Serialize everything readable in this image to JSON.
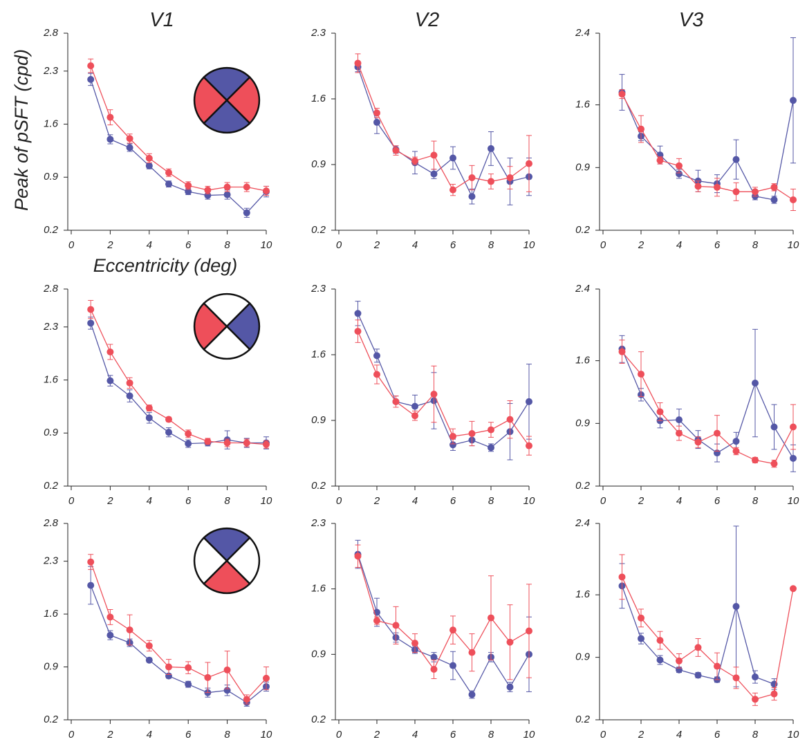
{
  "chart_data": [
    {
      "type": "line",
      "title": "V1",
      "ylabel": "Peak of pSFT (cpd)",
      "xlabel": "Eccentricity (deg)",
      "x": [
        1,
        2,
        3,
        4,
        5,
        6,
        7,
        8,
        9,
        10
      ],
      "xlim": [
        0,
        10
      ],
      "xticks": [
        0,
        2,
        4,
        6,
        8,
        10
      ],
      "ylim": [
        0.2,
        2.8
      ],
      "yticks": [
        0.2,
        0.9,
        1.6,
        2.3,
        2.8
      ],
      "series": [
        {
          "color": "#5457a6",
          "values": [
            2.19,
            1.4,
            1.29,
            1.05,
            0.81,
            0.71,
            0.66,
            0.67,
            0.43,
            0.71
          ],
          "errors": [
            0.08,
            0.06,
            0.05,
            0.04,
            0.04,
            0.04,
            0.05,
            0.06,
            0.06,
            0.07
          ]
        },
        {
          "color": "#ee4f5a",
          "values": [
            2.37,
            1.69,
            1.41,
            1.15,
            0.96,
            0.79,
            0.73,
            0.77,
            0.77,
            0.72
          ],
          "errors": [
            0.09,
            0.1,
            0.06,
            0.06,
            0.05,
            0.05,
            0.05,
            0.06,
            0.06,
            0.06
          ]
        }
      ]
    },
    {
      "type": "line",
      "title": "V2",
      "x": [
        1,
        2,
        3,
        4,
        5,
        6,
        7,
        8,
        9,
        10
      ],
      "xlim": [
        0,
        10
      ],
      "xticks": [
        0,
        2,
        4,
        6,
        8,
        10
      ],
      "ylim": [
        0.2,
        2.3
      ],
      "yticks": [
        0.2,
        0.9,
        1.6,
        2.3
      ],
      "series": [
        {
          "color": "#5457a6",
          "values": [
            1.94,
            1.35,
            1.06,
            0.92,
            0.8,
            0.97,
            0.56,
            1.07,
            0.72,
            0.77
          ],
          "errors": [
            0.05,
            0.12,
            0.04,
            0.12,
            0.05,
            0.12,
            0.08,
            0.18,
            0.25,
            0.2
          ]
        },
        {
          "color": "#ee4f5a",
          "values": [
            1.98,
            1.45,
            1.05,
            0.94,
            1.0,
            0.63,
            0.76,
            0.72,
            0.76,
            0.91
          ],
          "errors": [
            0.1,
            0.05,
            0.05,
            0.04,
            0.15,
            0.06,
            0.13,
            0.08,
            0.12,
            0.3
          ]
        }
      ]
    },
    {
      "type": "line",
      "title": "V3",
      "x": [
        1,
        2,
        3,
        4,
        5,
        6,
        7,
        8,
        9,
        10
      ],
      "xlim": [
        0,
        10
      ],
      "xticks": [
        0,
        2,
        4,
        6,
        8,
        10
      ],
      "ylim": [
        0.2,
        2.4
      ],
      "yticks": [
        0.2,
        0.9,
        1.6,
        2.4
      ],
      "series": [
        {
          "color": "#5457a6",
          "values": [
            1.74,
            1.25,
            1.04,
            0.83,
            0.75,
            0.72,
            0.99,
            0.58,
            0.54,
            1.65
          ],
          "errors": [
            0.2,
            0.05,
            0.1,
            0.05,
            0.12,
            0.1,
            0.22,
            0.04,
            0.04,
            0.7
          ]
        },
        {
          "color": "#ee4f5a",
          "values": [
            1.72,
            1.33,
            0.98,
            0.92,
            0.69,
            0.68,
            0.63,
            0.63,
            0.68,
            0.54
          ],
          "errors": [
            0.05,
            0.15,
            0.04,
            0.08,
            0.06,
            0.1,
            0.1,
            0.05,
            0.04,
            0.12
          ]
        }
      ]
    },
    {
      "type": "line",
      "x": [
        1,
        2,
        3,
        4,
        5,
        6,
        7,
        8,
        9,
        10
      ],
      "xlim": [
        0,
        10
      ],
      "xticks": [
        0,
        2,
        4,
        6,
        8,
        10
      ],
      "ylim": [
        0.2,
        2.8
      ],
      "yticks": [
        0.2,
        0.9,
        1.6,
        2.3,
        2.8
      ],
      "series": [
        {
          "color": "#5457a6",
          "values": [
            2.35,
            1.59,
            1.39,
            1.1,
            0.91,
            0.76,
            0.77,
            0.81,
            0.77,
            0.77
          ],
          "errors": [
            0.08,
            0.07,
            0.08,
            0.07,
            0.06,
            0.05,
            0.04,
            0.12,
            0.06,
            0.08
          ]
        },
        {
          "color": "#ee4f5a",
          "values": [
            2.53,
            1.97,
            1.56,
            1.23,
            1.08,
            0.89,
            0.79,
            0.77,
            0.77,
            0.75
          ],
          "errors": [
            0.12,
            0.1,
            0.07,
            0.04,
            0.03,
            0.05,
            0.04,
            0.05,
            0.05,
            0.05
          ]
        }
      ]
    },
    {
      "type": "line",
      "x": [
        1,
        2,
        3,
        4,
        5,
        6,
        7,
        8,
        9,
        10
      ],
      "xlim": [
        0,
        10
      ],
      "xticks": [
        0,
        2,
        4,
        6,
        8,
        10
      ],
      "ylim": [
        0.2,
        2.3
      ],
      "yticks": [
        0.2,
        0.9,
        1.6,
        2.3
      ],
      "series": [
        {
          "color": "#5457a6",
          "values": [
            2.04,
            1.59,
            1.1,
            1.05,
            1.11,
            0.64,
            0.69,
            0.61,
            0.78,
            1.1
          ],
          "errors": [
            0.13,
            0.07,
            0.06,
            0.12,
            0.3,
            0.06,
            0.06,
            0.04,
            0.3,
            0.4
          ]
        },
        {
          "color": "#ee4f5a",
          "values": [
            1.85,
            1.39,
            1.1,
            0.95,
            1.18,
            0.73,
            0.76,
            0.8,
            0.91,
            0.63
          ],
          "errors": [
            0.12,
            0.1,
            0.06,
            0.05,
            0.3,
            0.08,
            0.13,
            0.08,
            0.2,
            0.1
          ]
        }
      ]
    },
    {
      "type": "line",
      "x": [
        1,
        2,
        3,
        4,
        5,
        6,
        7,
        8,
        9,
        10
      ],
      "xlim": [
        0,
        10
      ],
      "xticks": [
        0,
        2,
        4,
        6,
        8,
        10
      ],
      "ylim": [
        0.2,
        2.4
      ],
      "yticks": [
        0.2,
        0.9,
        1.6,
        2.4
      ],
      "series": [
        {
          "color": "#5457a6",
          "values": [
            1.73,
            1.22,
            0.93,
            0.94,
            0.72,
            0.57,
            0.7,
            1.35,
            0.86,
            0.51
          ],
          "errors": [
            0.15,
            0.07,
            0.08,
            0.12,
            0.1,
            0.1,
            0.1,
            0.6,
            0.25,
            0.15
          ]
        },
        {
          "color": "#ee4f5a",
          "values": [
            1.7,
            1.45,
            1.03,
            0.79,
            0.69,
            0.79,
            0.59,
            0.49,
            0.45,
            0.86
          ],
          "errors": [
            0.13,
            0.25,
            0.1,
            0.08,
            0.06,
            0.2,
            0.04,
            0.03,
            0.04,
            0.25
          ]
        }
      ]
    },
    {
      "type": "line",
      "x": [
        1,
        2,
        3,
        4,
        5,
        6,
        7,
        8,
        9,
        10
      ],
      "xlim": [
        0,
        10
      ],
      "xticks": [
        0,
        2,
        4,
        6,
        8,
        10
      ],
      "ylim": [
        0.2,
        2.8
      ],
      "yticks": [
        0.2,
        0.9,
        1.6,
        2.3,
        2.8
      ],
      "series": [
        {
          "color": "#5457a6",
          "values": [
            1.98,
            1.32,
            1.22,
            0.99,
            0.78,
            0.67,
            0.56,
            0.59,
            0.43,
            0.64
          ],
          "errors": [
            0.25,
            0.06,
            0.05,
            0.03,
            0.03,
            0.04,
            0.06,
            0.07,
            0.05,
            0.06
          ]
        },
        {
          "color": "#ee4f5a",
          "values": [
            2.29,
            1.56,
            1.39,
            1.18,
            0.9,
            0.89,
            0.76,
            0.86,
            0.47,
            0.75
          ],
          "errors": [
            0.1,
            0.1,
            0.2,
            0.07,
            0.1,
            0.08,
            0.2,
            0.25,
            0.06,
            0.15
          ]
        }
      ]
    },
    {
      "type": "line",
      "x": [
        1,
        2,
        3,
        4,
        5,
        6,
        7,
        8,
        9,
        10
      ],
      "xlim": [
        0,
        10
      ],
      "xticks": [
        0,
        2,
        4,
        6,
        8,
        10
      ],
      "ylim": [
        0.2,
        2.3
      ],
      "yticks": [
        0.2,
        0.9,
        1.6,
        2.3
      ],
      "series": [
        {
          "color": "#5457a6",
          "values": [
            1.97,
            1.35,
            1.08,
            0.95,
            0.87,
            0.78,
            0.47,
            0.87,
            0.55,
            0.9
          ],
          "errors": [
            0.15,
            0.15,
            0.05,
            0.04,
            0.05,
            0.15,
            0.04,
            0.05,
            0.05,
            0.4
          ]
        },
        {
          "color": "#ee4f5a",
          "values": [
            1.95,
            1.26,
            1.21,
            1.02,
            0.74,
            1.16,
            0.92,
            1.29,
            1.03,
            1.15
          ],
          "errors": [
            0.12,
            0.04,
            0.2,
            0.1,
            0.1,
            0.15,
            0.2,
            0.45,
            0.4,
            0.5
          ]
        }
      ]
    },
    {
      "type": "line",
      "x": [
        1,
        2,
        3,
        4,
        5,
        6,
        7,
        8,
        9,
        10
      ],
      "xlim": [
        0,
        10
      ],
      "xticks": [
        0,
        2,
        4,
        6,
        8,
        10
      ],
      "ylim": [
        0.2,
        2.4
      ],
      "yticks": [
        0.2,
        0.9,
        1.6,
        2.4
      ],
      "series": [
        {
          "color": "#5457a6",
          "values": [
            1.7,
            1.11,
            0.87,
            0.76,
            0.7,
            0.65,
            1.47,
            0.68,
            0.6,
            null
          ],
          "errors": [
            0.25,
            0.06,
            0.05,
            0.03,
            0.03,
            0.03,
            0.9,
            0.07,
            0.06,
            null
          ]
        },
        {
          "color": "#ee4f5a",
          "values": [
            1.8,
            1.34,
            1.09,
            0.86,
            1.01,
            0.8,
            0.67,
            0.43,
            0.49,
            1.67
          ],
          "errors": [
            0.25,
            0.1,
            0.1,
            0.08,
            0.1,
            0.15,
            0.12,
            0.07,
            0.07,
            null
          ]
        }
      ]
    }
  ]
}
